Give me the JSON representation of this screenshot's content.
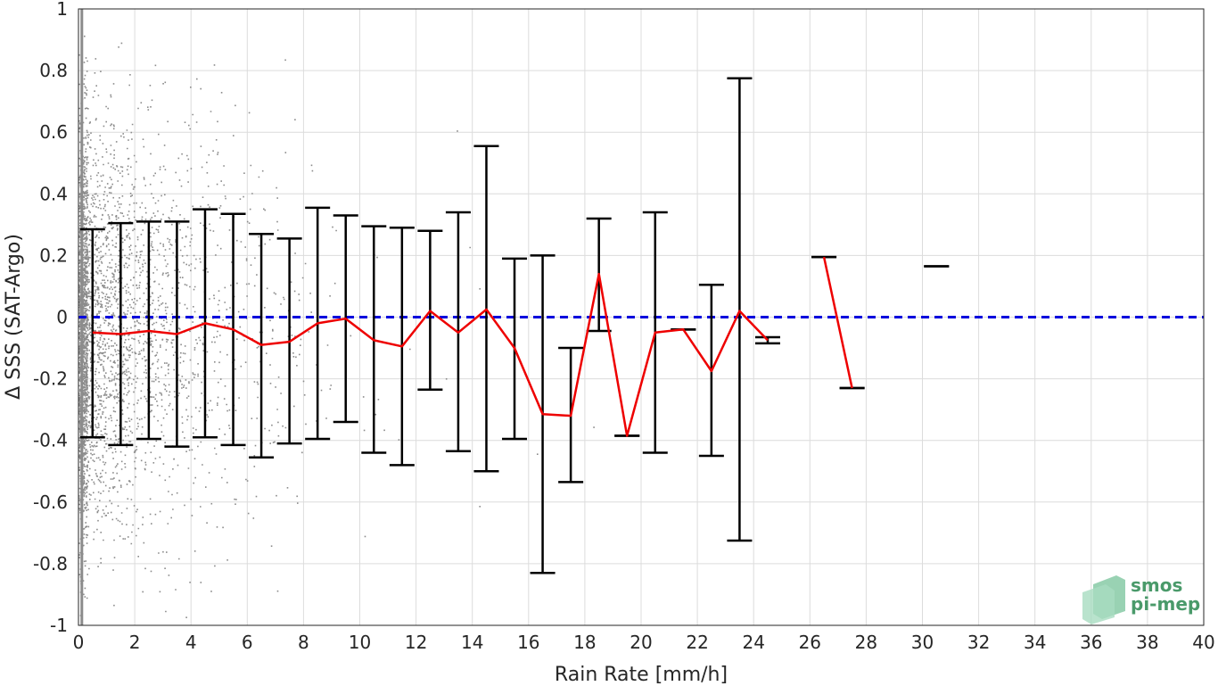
{
  "chart_data": {
    "type": "scatter",
    "xlabel": "Rain Rate [mm/h]",
    "ylabel": "Δ SSS (SAT-Argo)",
    "xlim": [
      0,
      40
    ],
    "ylim": [
      -1,
      1
    ],
    "xticks": [
      0,
      2,
      4,
      6,
      8,
      10,
      12,
      14,
      16,
      18,
      20,
      22,
      24,
      26,
      28,
      30,
      32,
      34,
      36,
      38,
      40
    ],
    "yticks": [
      -1,
      -0.8,
      -0.6,
      -0.4,
      -0.2,
      0,
      0.2,
      0.4,
      0.6,
      0.8,
      1
    ],
    "ytick_labels": [
      "-1",
      "-0.8",
      "-0.6",
      "-0.4",
      "-0.2",
      "0",
      "0.2",
      "0.4",
      "0.6",
      "0.8",
      "1"
    ],
    "grid": true,
    "reference_line": {
      "y": 0,
      "color": "#0000dd",
      "style": "dashed"
    },
    "mean_line_color": "#ee0000",
    "errorbar_color": "#000000",
    "scatter_color": "#8c8c8c",
    "bins": {
      "x": [
        0.5,
        1.5,
        2.5,
        3.5,
        4.5,
        5.5,
        6.5,
        7.5,
        8.5,
        9.5,
        10.5,
        11.5,
        12.5,
        13.5,
        14.5,
        15.5,
        16.5,
        17.5,
        18.5,
        19.5,
        20.5,
        21.5,
        22.5,
        23.5,
        24.5,
        26.5,
        27.5,
        30.5
      ],
      "mean": [
        -0.05,
        -0.055,
        -0.045,
        -0.055,
        -0.02,
        -0.04,
        -0.09,
        -0.08,
        -0.02,
        -0.005,
        -0.075,
        -0.095,
        0.02,
        -0.05,
        0.025,
        -0.1,
        -0.315,
        -0.32,
        0.14,
        -0.385,
        -0.05,
        -0.04,
        -0.175,
        0.02,
        -0.075,
        0.195,
        -0.23,
        0.165
      ],
      "upper": [
        0.285,
        0.305,
        0.31,
        0.31,
        0.35,
        0.335,
        0.27,
        0.255,
        0.355,
        0.33,
        0.295,
        0.29,
        0.28,
        0.34,
        0.555,
        0.19,
        0.2,
        -0.1,
        0.32,
        -0.385,
        0.34,
        -0.04,
        0.105,
        0.775,
        -0.065,
        0.195,
        -0.23,
        0.165
      ],
      "lower": [
        -0.39,
        -0.415,
        -0.395,
        -0.42,
        -0.39,
        -0.415,
        -0.455,
        -0.41,
        -0.395,
        -0.34,
        -0.44,
        -0.48,
        -0.235,
        -0.435,
        -0.5,
        -0.395,
        -0.83,
        -0.535,
        -0.045,
        -0.385,
        -0.44,
        -0.04,
        -0.45,
        -0.725,
        -0.085,
        0.195,
        -0.23,
        0.165
      ]
    },
    "mean_line_segments": [
      [
        0,
        24
      ],
      [
        25,
        26
      ],
      [
        27,
        27
      ]
    ]
  },
  "logo": {
    "line1": "smos",
    "line2": "pi-mep"
  }
}
